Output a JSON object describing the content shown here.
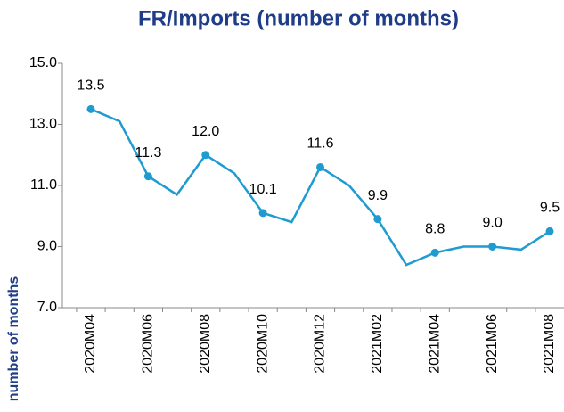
{
  "chart_data": {
    "type": "line",
    "title": "FR/Imports (number of months)",
    "y_label": "number of months",
    "categories": [
      "2020M04",
      null,
      "2020M06",
      null,
      "2020M08",
      null,
      "2020M10",
      null,
      "2020M12",
      null,
      "2021M02",
      null,
      "2021M04",
      null,
      "2021M06",
      null,
      "2021M08"
    ],
    "series": [
      {
        "name": "FR/Imports",
        "color": "#1e9bd0",
        "values": [
          13.5,
          13.1,
          11.3,
          10.7,
          12.0,
          11.4,
          10.1,
          9.8,
          11.6,
          11.0,
          9.9,
          8.4,
          8.8,
          9.0,
          9.0,
          8.9,
          9.5
        ],
        "value_labels": [
          "13.5",
          null,
          "11.3",
          null,
          "12.0",
          null,
          "10.1",
          null,
          "11.6",
          null,
          "9.9",
          null,
          "8.8",
          null,
          "9.0",
          null,
          "9.5"
        ]
      }
    ],
    "ylim": [
      7,
      15
    ],
    "yticks": [
      {
        "value": 7,
        "label": "7.0"
      },
      {
        "value": 9,
        "label": "9.0"
      },
      {
        "value": 11,
        "label": "11.0"
      },
      {
        "value": 13,
        "label": "13.0"
      },
      {
        "value": 15,
        "label": "15.0"
      }
    ],
    "grid": false
  }
}
